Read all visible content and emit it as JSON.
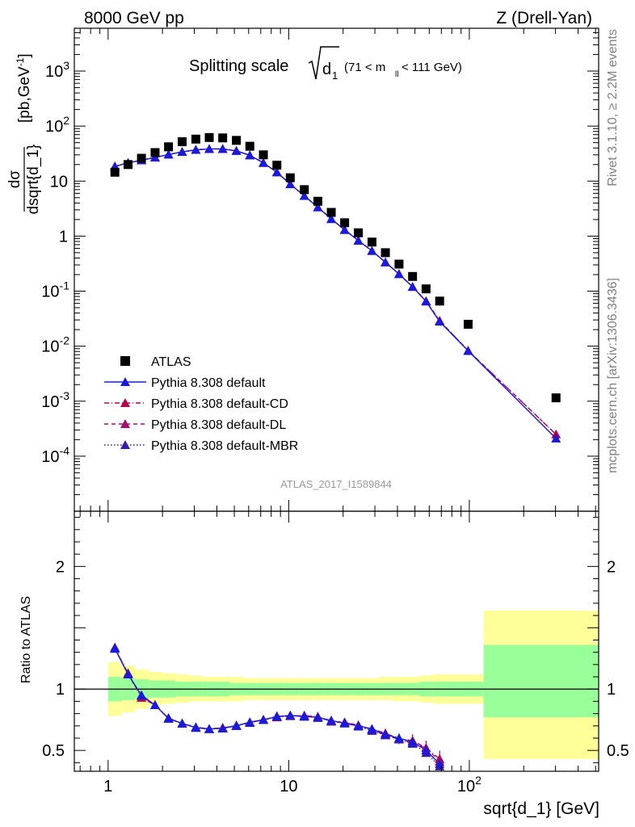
{
  "header": {
    "left": "8000 GeV pp",
    "right": "Z (Drell-Yan)"
  },
  "side_labels": {
    "rivet": "Rivet 3.1.10, ≥ 2.2M events",
    "mcplots": "mcplots.cern.ch [arXiv:1306.3436]"
  },
  "watermark": "ATLAS_2017_I1589844",
  "colors": {
    "data": "#000000",
    "default": "#1a1adb",
    "cd": "#b8004e",
    "dl": "#a0106a",
    "mbr": "#3a1aa8",
    "band_yellow": "#ffff99",
    "band_green": "#99ff99"
  },
  "chart_data": [
    {
      "type": "scatter",
      "title_main": "Splitting scale",
      "title_sym": "√d",
      "title_sub": "1",
      "title_range_pre": "(71 < m",
      "title_range_sub": "ll",
      "title_range_post": " < 111 GeV)",
      "ylabel_num": "dσ",
      "ylabel_den": "dsqrt{d_1}",
      "ylabel_unit": "[pb,GeV",
      "ylabel_unit_sup": "-1",
      "ylabel_unit_close": "]",
      "yscale": "log",
      "xscale": "log",
      "xlim": [
        0.65,
        520
      ],
      "ylim": [
        1e-05,
        6000
      ],
      "y_ticks": [
        {
          "v": 0.0001,
          "base": "10",
          "exp": "-4"
        },
        {
          "v": 0.001,
          "base": "10",
          "exp": "-3"
        },
        {
          "v": 0.01,
          "base": "10",
          "exp": "-2"
        },
        {
          "v": 0.1,
          "base": "10",
          "exp": "-1"
        },
        {
          "v": 1,
          "base": "1",
          "exp": ""
        },
        {
          "v": 10,
          "base": "10",
          "exp": ""
        },
        {
          "v": 100,
          "base": "10",
          "exp": "2"
        },
        {
          "v": 1000,
          "base": "10",
          "exp": "3"
        }
      ],
      "legend": {
        "placement": "lower-left",
        "entries": [
          {
            "name": "ATLAS",
            "marker": "square",
            "color_key": "data"
          },
          {
            "name": "Pythia 8.308 default",
            "marker": "triangle",
            "line": "solid",
            "color_key": "default"
          },
          {
            "name": "Pythia 8.308 default-CD",
            "marker": "triangle",
            "line": "dashdot",
            "color_key": "cd"
          },
          {
            "name": "Pythia 8.308 default-DL",
            "marker": "triangle",
            "line": "dashed",
            "color_key": "dl"
          },
          {
            "name": "Pythia 8.308 default-MBR",
            "marker": "triangle",
            "line": "dotted",
            "color_key": "mbr"
          }
        ]
      },
      "x": [
        1.09,
        1.29,
        1.53,
        1.82,
        2.16,
        2.57,
        3.06,
        3.63,
        4.31,
        5.13,
        6.09,
        7.24,
        8.6,
        10.2,
        12.2,
        14.5,
        17.2,
        20.4,
        24.3,
        28.9,
        34.3,
        40.8,
        48.5,
        57.6,
        68.5,
        98.5,
        302
      ],
      "data_y": [
        14.5,
        20,
        26,
        33,
        42,
        52,
        58,
        62,
        61,
        55,
        43,
        30,
        19.5,
        11.5,
        7,
        4.3,
        2.7,
        1.75,
        1.15,
        0.78,
        0.5,
        0.31,
        0.185,
        0.11,
        0.066,
        0.025,
        0.00115
      ],
      "mc_y": [
        18.5,
        21.5,
        24,
        27,
        30.5,
        34,
        37,
        38.5,
        38.5,
        35.5,
        29.5,
        21.5,
        14.5,
        8.8,
        5.4,
        3.35,
        2.05,
        1.3,
        0.83,
        0.54,
        0.335,
        0.205,
        0.12,
        0.065,
        0.028,
        0.0082,
        0.00021
      ],
      "mc_y_cd": [
        18.5,
        21.5,
        24,
        27,
        30.5,
        34,
        37,
        38.5,
        38.5,
        35.5,
        29.5,
        21.5,
        14.5,
        8.8,
        5.4,
        3.35,
        2.05,
        1.3,
        0.83,
        0.54,
        0.335,
        0.205,
        0.12,
        0.066,
        0.029,
        0.0083,
        0.00025
      ]
    },
    {
      "type": "scatter",
      "ylabel": "Ratio to ATLAS",
      "xlabel": "sqrt{d_1} [GeV]",
      "xscale": "log",
      "xlim": [
        0.65,
        520
      ],
      "ylim": [
        0.33,
        2.45
      ],
      "y_ticks": [
        {
          "v": 0.5,
          "label": "0.5"
        },
        {
          "v": 1,
          "label": "1"
        },
        {
          "v": 2,
          "label": "2"
        }
      ],
      "x_ticks": [
        {
          "v": 1,
          "base": "1",
          "exp": ""
        },
        {
          "v": 10,
          "base": "10",
          "exp": ""
        },
        {
          "v": 100,
          "base": "10",
          "exp": "2"
        }
      ],
      "band_edges": [
        1,
        1.19,
        1.41,
        1.68,
        2,
        2.37,
        2.82,
        3.35,
        3.98,
        4.73,
        5.62,
        6.68,
        7.94,
        9.44,
        11.2,
        13.3,
        15.8,
        18.8,
        22.4,
        26.6,
        31.6,
        37.6,
        44.7,
        53.1,
        63.1,
        120,
        520
      ],
      "band_yellow_lo": [
        0.78,
        0.81,
        0.84,
        0.87,
        0.88,
        0.89,
        0.9,
        0.9,
        0.9,
        0.9,
        0.91,
        0.91,
        0.91,
        0.91,
        0.91,
        0.91,
        0.91,
        0.91,
        0.91,
        0.91,
        0.91,
        0.9,
        0.9,
        0.89,
        0.88,
        0.43
      ],
      "band_yellow_hi": [
        1.22,
        1.19,
        1.16,
        1.14,
        1.13,
        1.12,
        1.11,
        1.1,
        1.1,
        1.1,
        1.09,
        1.09,
        1.09,
        1.09,
        1.09,
        1.09,
        1.09,
        1.09,
        1.09,
        1.09,
        1.1,
        1.1,
        1.1,
        1.11,
        1.12,
        1.64
      ],
      "band_green_lo": [
        0.9,
        0.91,
        0.92,
        0.93,
        0.93,
        0.94,
        0.94,
        0.94,
        0.94,
        0.95,
        0.95,
        0.95,
        0.95,
        0.95,
        0.95,
        0.95,
        0.95,
        0.95,
        0.95,
        0.95,
        0.95,
        0.95,
        0.95,
        0.94,
        0.94,
        0.77
      ],
      "band_green_hi": [
        1.1,
        1.09,
        1.08,
        1.07,
        1.07,
        1.06,
        1.06,
        1.06,
        1.06,
        1.05,
        1.05,
        1.05,
        1.05,
        1.05,
        1.05,
        1.05,
        1.05,
        1.05,
        1.05,
        1.05,
        1.05,
        1.05,
        1.05,
        1.06,
        1.06,
        1.36
      ],
      "x": [
        1.09,
        1.29,
        1.53,
        1.82,
        2.16,
        2.57,
        3.06,
        3.63,
        4.31,
        5.13,
        6.09,
        7.24,
        8.6,
        10.2,
        12.2,
        14.5,
        17.2,
        20.4,
        24.3,
        28.9,
        34.3,
        40.8,
        48.5,
        57.6,
        68.5
      ],
      "ratio_default": [
        1.33,
        1.12,
        0.95,
        0.87,
        0.76,
        0.72,
        0.685,
        0.675,
        0.68,
        0.7,
        0.73,
        0.75,
        0.775,
        0.785,
        0.775,
        0.77,
        0.745,
        0.72,
        0.7,
        0.675,
        0.63,
        0.6,
        0.57,
        0.5,
        0.39
      ],
      "ratio_cd": [
        1.33,
        1.13,
        0.93,
        0.87,
        0.76,
        0.72,
        0.685,
        0.675,
        0.685,
        0.7,
        0.725,
        0.75,
        0.77,
        0.78,
        0.785,
        0.775,
        0.735,
        0.725,
        0.705,
        0.675,
        0.64,
        0.595,
        0.58,
        0.52,
        0.43
      ],
      "ratio_dl": [
        1.33,
        1.12,
        0.94,
        0.87,
        0.76,
        0.72,
        0.69,
        0.675,
        0.685,
        0.7,
        0.73,
        0.75,
        0.775,
        0.785,
        0.78,
        0.775,
        0.735,
        0.73,
        0.705,
        0.67,
        0.625,
        0.59,
        0.56,
        0.52,
        0.41
      ],
      "ratio_mbr": [
        1.34,
        1.12,
        0.95,
        0.87,
        0.765,
        0.72,
        0.69,
        0.675,
        0.68,
        0.705,
        0.725,
        0.75,
        0.78,
        0.785,
        0.78,
        0.765,
        0.74,
        0.725,
        0.695,
        0.66,
        0.625,
        0.59,
        0.555,
        0.48,
        0.37
      ]
    }
  ]
}
